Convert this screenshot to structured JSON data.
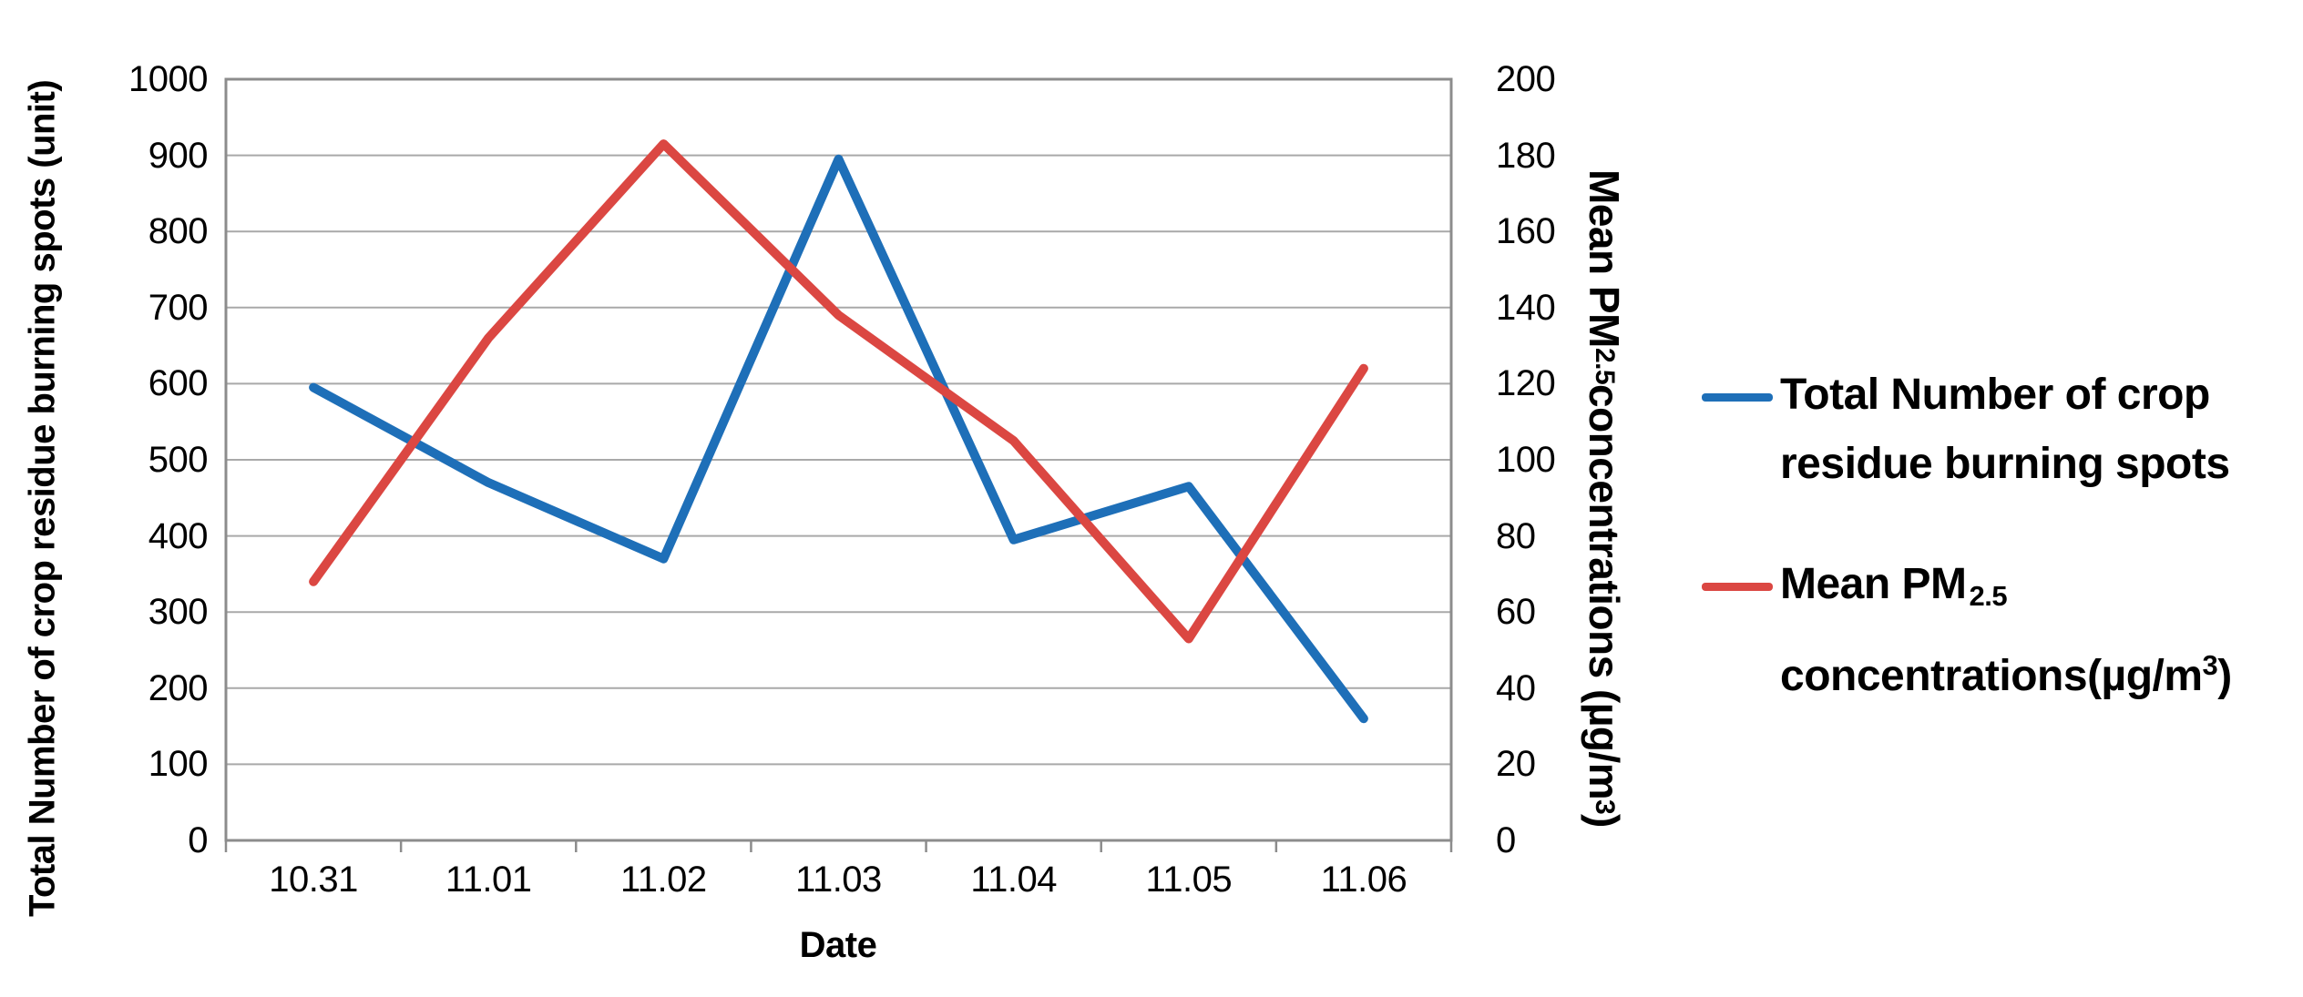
{
  "chart_data": {
    "type": "line",
    "categories": [
      "10.31",
      "11.01",
      "11.02",
      "11.03",
      "11.04",
      "11.05",
      "11.06"
    ],
    "series": [
      {
        "name": "Total Number of crop residue burning spots",
        "axis": "left",
        "color": "#1E6FB8",
        "values": [
          595,
          470,
          370,
          895,
          395,
          465,
          160
        ]
      },
      {
        "name": "Mean PM2.5 concentrations(µg/m³)",
        "axis": "right",
        "color": "#DB4742",
        "values": [
          68,
          132,
          183,
          138,
          105,
          53,
          124
        ]
      }
    ],
    "xlabel": "Date",
    "ylabel_left": "Total Number of crop residue burning spots (unit)",
    "ylabel_right": "Mean PM2.5 concentrations (µg/m³)",
    "ylim_left": [
      0,
      1000
    ],
    "ylim_right": [
      0,
      200
    ],
    "y_left_ticks": [
      "1000",
      "900",
      "800",
      "700",
      "600",
      "500",
      "400",
      "300",
      "200",
      "100",
      "0"
    ],
    "y_right_ticks": [
      "200",
      "180",
      "160",
      "140",
      "120",
      "100",
      "80",
      "60",
      "40",
      "20",
      "0"
    ],
    "grid": true,
    "legend_position": "right"
  },
  "axes": {
    "left_title": "Total Number of crop residue burning spots (unit)",
    "right_title_main": "Mean PM",
    "right_title_sub": "2.5",
    "right_title_rest": " concentrations (µg/m",
    "right_title_sup": "3",
    "right_title_end": ")",
    "x_title": "Date"
  },
  "legend": {
    "items": [
      {
        "line1": "Total Number of crop",
        "line2": "residue burning spots"
      },
      {
        "line1_main": "Mean PM",
        "line1_sub": "2.5",
        "line2_main": "concentrations(µg/m",
        "line2_sup": "3",
        "line2_end": ")"
      }
    ]
  },
  "colors": {
    "series1": "#1E6FB8",
    "series2": "#DB4742",
    "gridline": "#A9A9A9",
    "axis": "#8C8C8C",
    "text": "#000000"
  }
}
